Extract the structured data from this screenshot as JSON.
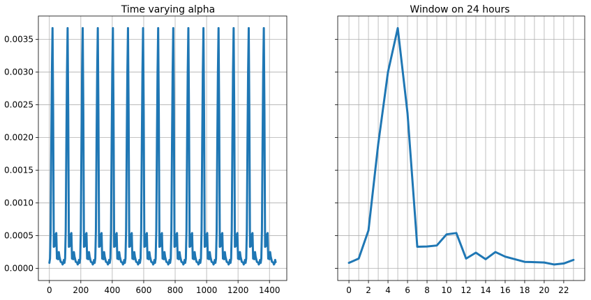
{
  "chart_data": [
    {
      "type": "line",
      "title": "Time varying alpha",
      "xlabel": "",
      "ylabel": "",
      "xlim": [
        -70,
        1510
      ],
      "ylim": [
        -0.000185,
        0.003855
      ],
      "xticks": [
        0,
        200,
        400,
        600,
        800,
        1000,
        1200,
        1400
      ],
      "xtick_labels": [
        "0",
        "200",
        "400",
        "600",
        "800",
        "1000",
        "1200",
        "1400"
      ],
      "yticks": [
        0,
        0.0005,
        0.001,
        0.0015,
        0.002,
        0.0025,
        0.003,
        0.0035
      ],
      "ytick_labels": [
        "0.0000",
        "0.0005",
        "0.0010",
        "0.0015",
        "0.0020",
        "0.0025",
        "0.0030",
        "0.0035"
      ],
      "grid": true,
      "color": "#1f77b4",
      "period": 96,
      "n_points": 1440,
      "daily_profile": [
        8.5e-05,
        0.00015,
        0.00058,
        0.0019,
        0.003,
        0.00367,
        0.00237,
        0.00033,
        0.000335,
        0.00035,
        0.00052,
        0.00054,
        0.00015,
        0.00024,
        0.00014,
        0.00025,
        0.00018,
        0.00014,
        0.0001,
        9.5e-05,
        9e-05,
        6e-05,
        7.5e-05,
        0.00013
      ]
    },
    {
      "type": "line",
      "title": "Window on 24 hours",
      "xlabel": "",
      "ylabel": "",
      "xlim": [
        -1.15,
        24.15
      ],
      "ylim": [
        -0.000185,
        0.003855
      ],
      "x": [
        0,
        1,
        2,
        3,
        4,
        5,
        6,
        7,
        8,
        9,
        10,
        11,
        12,
        13,
        14,
        15,
        16,
        17,
        18,
        19,
        20,
        21,
        22,
        23
      ],
      "values": [
        8.5e-05,
        0.00015,
        0.00058,
        0.0019,
        0.003,
        0.00367,
        0.00237,
        0.00033,
        0.000335,
        0.00035,
        0.00052,
        0.00054,
        0.00015,
        0.00024,
        0.00014,
        0.00025,
        0.00018,
        0.00014,
        0.0001,
        9.5e-05,
        9e-05,
        6e-05,
        7.5e-05,
        0.00013
      ],
      "xticks": [
        0,
        2,
        4,
        6,
        8,
        10,
        12,
        14,
        16,
        18,
        20,
        22
      ],
      "xtick_labels": [
        "0",
        "2",
        "4",
        "6",
        "8",
        "10",
        "12",
        "14",
        "16",
        "18",
        "20",
        "22"
      ],
      "grid": true,
      "grid_x_every": 1,
      "y_shared_with_left": true,
      "color": "#1f77b4"
    }
  ]
}
